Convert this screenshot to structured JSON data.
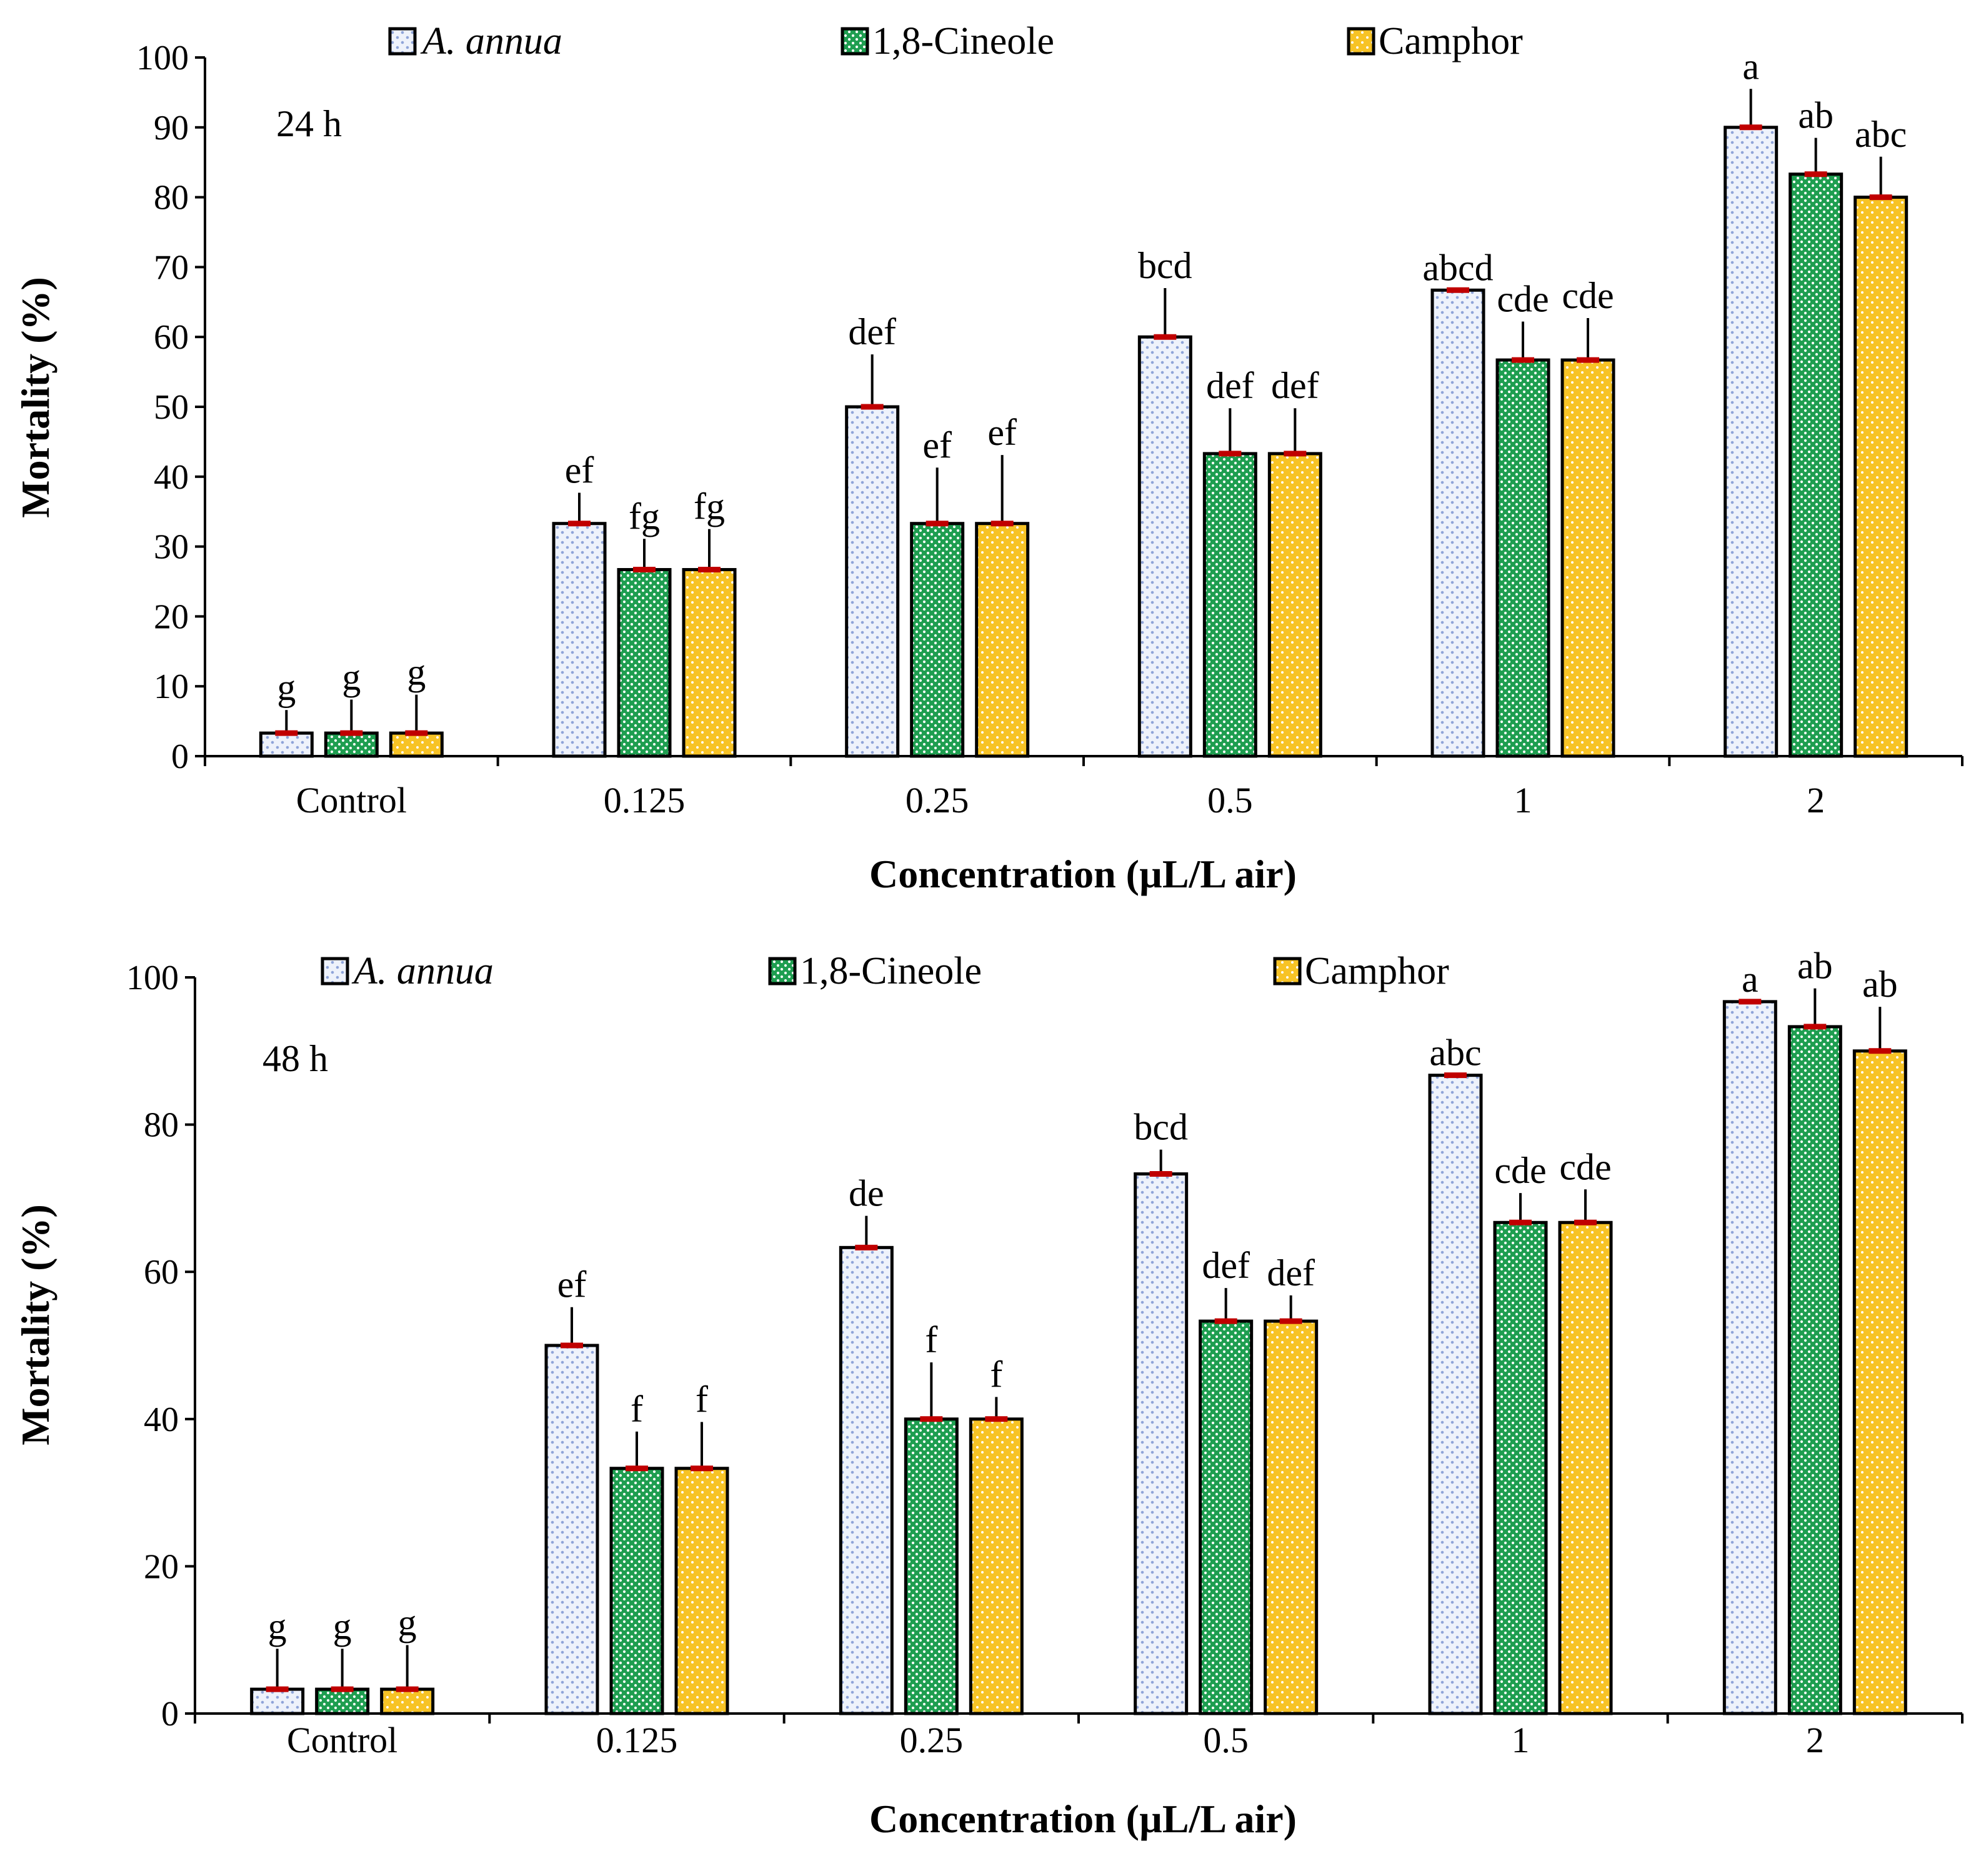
{
  "legend_items": [
    {
      "key": "annua",
      "label": "A. annua",
      "italic": true,
      "fill": "#eef2fb",
      "dot": "#8fa4d9"
    },
    {
      "key": "cineole",
      "label": "1,8-Cineole",
      "italic": false,
      "fill": "#1e9e50",
      "dot": "#ffffff"
    },
    {
      "key": "camphor",
      "label": "Camphor",
      "italic": false,
      "fill": "#f7c325",
      "dot": "#ffffff"
    }
  ],
  "colors": {
    "error_cap": "#c00000",
    "bar_border": "#000000"
  },
  "chart_data": [
    {
      "type": "bar",
      "panel_label": "24 h",
      "xlabel": "Concentration (µL/L air)",
      "ylabel": "Mortality (%)",
      "ylim": [
        0,
        100
      ],
      "yticks": [
        0,
        10,
        20,
        30,
        40,
        50,
        60,
        70,
        80,
        90,
        100
      ],
      "categories": [
        "Control",
        "0.125",
        "0.25",
        "0.5",
        "1",
        "2"
      ],
      "series": [
        {
          "name": "A. annua",
          "values": [
            3.3,
            33.3,
            50.0,
            60.0,
            66.7,
            90.0
          ],
          "errors": [
            3.3,
            4.4,
            7.5,
            7.0,
            0.0,
            5.5
          ],
          "letters": [
            "g",
            "ef",
            "def",
            "bcd",
            "abcd",
            "a"
          ]
        },
        {
          "name": "1,8-Cineole",
          "values": [
            3.3,
            26.7,
            33.3,
            43.3,
            56.7,
            83.3
          ],
          "errors": [
            4.8,
            4.4,
            8.0,
            6.5,
            5.5,
            5.2
          ],
          "letters": [
            "g",
            "fg",
            "ef",
            "def",
            "cde",
            "ab"
          ]
        },
        {
          "name": "Camphor",
          "values": [
            3.3,
            26.7,
            33.3,
            43.3,
            56.7,
            80.0
          ],
          "errors": [
            5.5,
            5.8,
            9.8,
            6.5,
            6.0,
            5.8
          ],
          "letters": [
            "g",
            "fg",
            "ef",
            "def",
            "cde",
            "abc"
          ]
        }
      ]
    },
    {
      "type": "bar",
      "panel_label": "48 h",
      "xlabel": "Concentration (µL/L air)",
      "ylabel": "Mortality (%)",
      "ylim": [
        0,
        100
      ],
      "yticks": [
        0,
        20,
        40,
        60,
        80,
        100
      ],
      "categories": [
        "Control",
        "0.125",
        "0.25",
        "0.5",
        "1",
        "2"
      ],
      "series": [
        {
          "name": "A. annua",
          "values": [
            3.3,
            50.0,
            63.3,
            73.3,
            86.7,
            96.7
          ],
          "errors": [
            5.5,
            5.2,
            4.3,
            3.3,
            0.0,
            0.0
          ],
          "letters": [
            "g",
            "ef",
            "de",
            "bcd",
            "abc",
            "a"
          ]
        },
        {
          "name": "1,8-Cineole",
          "values": [
            3.3,
            33.3,
            40.0,
            53.3,
            66.7,
            93.3
          ],
          "errors": [
            5.5,
            5.0,
            7.7,
            4.5,
            4.0,
            5.2
          ],
          "letters": [
            "g",
            "f",
            "f",
            "def",
            "cde",
            "ab"
          ]
        },
        {
          "name": "Camphor",
          "values": [
            3.3,
            33.3,
            40.0,
            53.3,
            66.7,
            90.0
          ],
          "errors": [
            6.0,
            6.3,
            3.0,
            3.5,
            4.5,
            6.0
          ],
          "letters": [
            "g",
            "f",
            "f",
            "def",
            "cde",
            "ab"
          ]
        }
      ]
    }
  ]
}
